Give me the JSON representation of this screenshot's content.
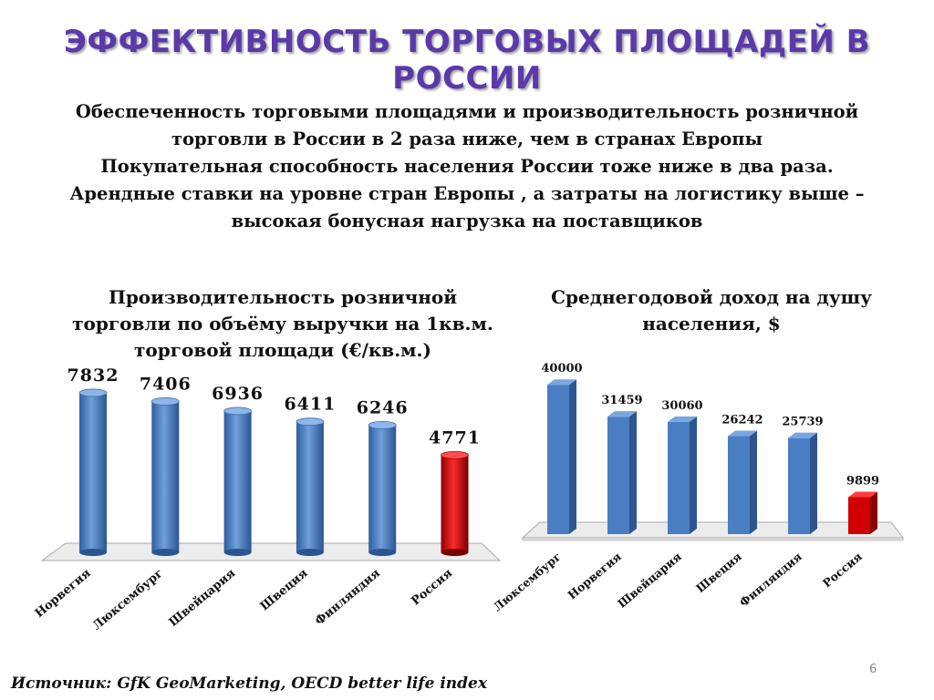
{
  "title": "ЭФФЕКТИВНОСТЬ ТОРГОВЫХ ПЛОЩАДЕЙ В РОССИИ",
  "intro_lines": [
    "Обеспеченность торговыми площадями и производительность розничной",
    "торговли в России в 2 раза ниже, чем в  странах Европы",
    "Покупательная способность населения России тоже ниже в два раза.",
    "Арендные ставки на уровне стран Европы , а затраты на логистику выше  –",
    "высокая  бонусная нагрузка на поставщиков"
  ],
  "source": "Источник: GfK GeoMarketing, OECD better life index",
  "page_number": "6",
  "colors": {
    "title": "#5a3aa8",
    "bar_blue": "#4a7ec2",
    "bar_red": "#cc0000"
  },
  "chart_data": [
    {
      "type": "bar",
      "title_lines": [
        "Производительность розничной",
        "торговли по объёму выручки на 1кв.м.",
        "торговой площади (€/кв.м.)"
      ],
      "categories": [
        "Норвегия",
        "Люксембург",
        "Швейцария",
        "Швеция",
        "Финляндия",
        "Россия"
      ],
      "values": [
        7832,
        7406,
        6936,
        6411,
        6246,
        4771
      ],
      "value_labels": [
        "7832",
        "7406",
        "6936",
        "6411",
        "6246",
        "4771"
      ],
      "highlight_category": "Россия",
      "ylim": [
        0,
        8500
      ],
      "shape": "cylinder"
    },
    {
      "type": "bar",
      "title_lines": [
        "Среднегодовой доход на душу",
        "населения, $"
      ],
      "categories": [
        "Люксембург",
        "Норвегия",
        "Швейцария",
        "Швеция",
        "Финляндия",
        "Россия"
      ],
      "values": [
        40000,
        31459,
        30060,
        26242,
        25739,
        9899
      ],
      "value_labels": [
        "40000",
        "31459",
        "30060",
        "26242",
        "25739",
        "9899"
      ],
      "highlight_category": "Россия",
      "ylim": [
        0,
        42000
      ],
      "shape": "box"
    }
  ]
}
